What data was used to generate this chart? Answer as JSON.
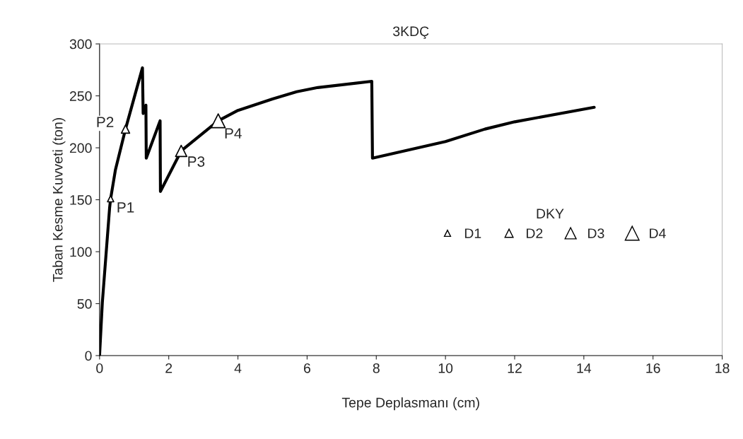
{
  "chart_data": {
    "type": "line",
    "title": "3KDÇ",
    "xlabel": "Tepe Deplasmanı (cm)",
    "ylabel": "Taban Kesme Kuvveti (ton)",
    "xlim": [
      0,
      18
    ],
    "xticks": [
      0,
      2,
      4,
      6,
      8,
      10,
      12,
      14,
      16,
      18
    ],
    "ylim": [
      0,
      300
    ],
    "yticks": [
      0,
      50,
      100,
      150,
      200,
      250,
      300
    ],
    "grid": false,
    "legend": "right",
    "legend_title": "DKY",
    "series": [
      {
        "color": "#000000",
        "marker": "none",
        "line_style": "solid",
        "x": [
          0,
          0.08,
          0.29,
          0.32,
          0.46,
          0.75,
          1.24,
          1.26,
          1.34,
          1.35,
          1.75,
          1.76,
          2.36,
          3.43,
          4,
          5,
          5.7,
          6.31,
          7.87,
          7.89,
          10,
          11.14,
          12,
          14.3
        ],
        "values": [
          0,
          51,
          142,
          151,
          179,
          218,
          277,
          233,
          241,
          190,
          226,
          158,
          197,
          226,
          236,
          247,
          254,
          258,
          264,
          190,
          206,
          218,
          225,
          239
        ]
      },
      {
        "type": "scatter",
        "name": "D1",
        "color": "#000000",
        "marker": "triangle",
        "x": [
          0.32
        ],
        "values": [
          151
        ]
      },
      {
        "type": "scatter",
        "name": "D2",
        "color": "#000000",
        "marker": "triangle",
        "x": [
          0.75
        ],
        "values": [
          218
        ]
      },
      {
        "type": "scatter",
        "name": "D3",
        "color": "#000000",
        "marker": "triangle",
        "x": [
          2.36
        ],
        "values": [
          197
        ]
      },
      {
        "type": "scatter",
        "name": "D4",
        "color": "#000000",
        "marker": "triangle",
        "x": [
          3.43
        ],
        "values": [
          226
        ]
      }
    ],
    "annotations": [
      {
        "text": "P1",
        "x": 0.32,
        "y": 151
      },
      {
        "text": "P2",
        "x": 0.75,
        "y": 218
      },
      {
        "text": "P3",
        "x": 2.36,
        "y": 197
      },
      {
        "text": "P4",
        "x": 3.43,
        "y": 226
      }
    ]
  }
}
